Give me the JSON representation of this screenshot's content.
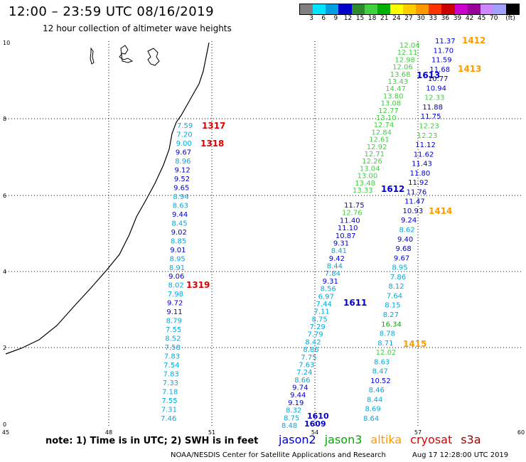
{
  "header": {
    "title": "12:00 – 23:59 UTC 08/16/2019",
    "subtitle": "12 hour collection of altimeter wave heights"
  },
  "legend": {
    "colors": [
      "#808080",
      "#00e5ff",
      "#00a0e0",
      "#0000cc",
      "#2c8a2c",
      "#40d040",
      "#00b000",
      "#ffff00",
      "#ffcc00",
      "#ff9900",
      "#ff3300",
      "#cc0000",
      "#cc00cc",
      "#990099",
      "#cc88ff",
      "#a0a0ff",
      "#000000"
    ],
    "labels": [
      "3",
      "6",
      "9",
      "12",
      "15",
      "18",
      "21",
      "24",
      "27",
      "30",
      "33",
      "36",
      "39",
      "42",
      "45",
      "70",
      "(ft)"
    ]
  },
  "axes": {
    "x_ticks": [
      "45",
      "48",
      "51",
      "54",
      "57",
      "60"
    ],
    "y_ticks": [
      "0",
      "2",
      "4",
      "6",
      "8",
      "10"
    ]
  },
  "colors": {
    "cyan": "#00aadd",
    "blue": "#0000cc",
    "green": "#44cc44",
    "darkgreen": "#00aa00",
    "orange": "#ff9900",
    "red": "#dd0000"
  },
  "tracks": [
    {
      "id": "1317",
      "label": "1317",
      "color": "red"
    },
    {
      "id": "1318",
      "label": "1318",
      "color": "red"
    },
    {
      "id": "1319",
      "label": "1319",
      "color": "red"
    },
    {
      "id": "1610",
      "label": "1610",
      "color": "blue"
    },
    {
      "id": "1609",
      "label": "1609",
      "color": "blue"
    },
    {
      "id": "1611",
      "label": "1611",
      "color": "blue"
    },
    {
      "id": "1612",
      "label": "1612",
      "color": "blue"
    },
    {
      "id": "1613",
      "label": "1613",
      "color": "blue"
    },
    {
      "id": "1412",
      "label": "1412",
      "color": "orange"
    },
    {
      "id": "1413",
      "label": "1413",
      "color": "orange"
    },
    {
      "id": "1414",
      "label": "1414",
      "color": "orange"
    },
    {
      "id": "1415",
      "label": "1415",
      "color": "orange"
    }
  ],
  "values": {
    "col1": [
      {
        "v": "7.59",
        "c": "cyan"
      },
      {
        "v": "7.20",
        "c": "cyan"
      },
      {
        "v": "9.00",
        "c": "cyan"
      },
      {
        "v": "9.67",
        "c": "blue"
      },
      {
        "v": "8.96",
        "c": "cyan"
      },
      {
        "v": "9.12",
        "c": "blue"
      },
      {
        "v": "9.52",
        "c": "blue"
      },
      {
        "v": "9.65",
        "c": "blue"
      },
      {
        "v": "8.94",
        "c": "cyan"
      },
      {
        "v": "8.63",
        "c": "cyan"
      },
      {
        "v": "9.44",
        "c": "blue"
      },
      {
        "v": "8.45",
        "c": "cyan"
      },
      {
        "v": "9.02",
        "c": "blue"
      },
      {
        "v": "8.85",
        "c": "cyan"
      },
      {
        "v": "9.01",
        "c": "blue"
      },
      {
        "v": "8.95",
        "c": "cyan"
      },
      {
        "v": "8.91",
        "c": "cyan"
      },
      {
        "v": "9.06",
        "c": "blue"
      },
      {
        "v": "8.02",
        "c": "cyan"
      },
      {
        "v": "7.98",
        "c": "cyan"
      },
      {
        "v": "9.72",
        "c": "blue"
      },
      {
        "v": "9.11",
        "c": "blue"
      },
      {
        "v": "8.79",
        "c": "cyan"
      },
      {
        "v": "7.55",
        "c": "cyan"
      },
      {
        "v": "8.52",
        "c": "cyan"
      },
      {
        "v": "7.58",
        "c": "cyan"
      },
      {
        "v": "7.83",
        "c": "cyan"
      },
      {
        "v": "7.54",
        "c": "cyan"
      },
      {
        "v": "7.83",
        "c": "cyan"
      },
      {
        "v": "7.33",
        "c": "cyan"
      },
      {
        "v": "7.18",
        "c": "cyan"
      },
      {
        "v": "7.55",
        "c": "cyan"
      },
      {
        "v": "7.31",
        "c": "cyan"
      },
      {
        "v": "7.46",
        "c": "cyan"
      }
    ],
    "col2": [
      {
        "v": "11.75",
        "c": "blue"
      },
      {
        "v": "12.76",
        "c": "green"
      },
      {
        "v": "11.40",
        "c": "blue"
      },
      {
        "v": "11.10",
        "c": "blue"
      },
      {
        "v": "10.87",
        "c": "blue"
      },
      {
        "v": "9.31",
        "c": "blue"
      },
      {
        "v": "8.41",
        "c": "cyan"
      },
      {
        "v": "9.42",
        "c": "blue"
      },
      {
        "v": "8.44",
        "c": "cyan"
      },
      {
        "v": "7.84",
        "c": "cyan"
      },
      {
        "v": "9.31",
        "c": "blue"
      },
      {
        "v": "8.56",
        "c": "cyan"
      },
      {
        "v": "6.97",
        "c": "cyan"
      },
      {
        "v": "7.44",
        "c": "cyan"
      },
      {
        "v": "7.11",
        "c": "cyan"
      },
      {
        "v": "8.75",
        "c": "cyan"
      },
      {
        "v": "7.29",
        "c": "cyan"
      },
      {
        "v": "7.79",
        "c": "cyan"
      },
      {
        "v": "8.42",
        "c": "cyan"
      },
      {
        "v": "8.86",
        "c": "cyan"
      },
      {
        "v": "7.75",
        "c": "cyan"
      },
      {
        "v": "7.63",
        "c": "cyan"
      },
      {
        "v": "7.24",
        "c": "cyan"
      },
      {
        "v": "8.66",
        "c": "cyan"
      },
      {
        "v": "9.74",
        "c": "blue"
      },
      {
        "v": "9.44",
        "c": "blue"
      },
      {
        "v": "9.19",
        "c": "blue"
      },
      {
        "v": "8.32",
        "c": "cyan"
      },
      {
        "v": "8.75",
        "c": "cyan"
      },
      {
        "v": "8.48",
        "c": "cyan"
      }
    ],
    "col3": [
      {
        "v": "12.04",
        "c": "green"
      },
      {
        "v": "12.11",
        "c": "green"
      },
      {
        "v": "12.98",
        "c": "green"
      },
      {
        "v": "12.06",
        "c": "green"
      },
      {
        "v": "13.68",
        "c": "green"
      },
      {
        "v": "13.43",
        "c": "green"
      },
      {
        "v": "14.47",
        "c": "green"
      },
      {
        "v": "13.80",
        "c": "green"
      },
      {
        "v": "13.08",
        "c": "green"
      },
      {
        "v": "12.77",
        "c": "green"
      },
      {
        "v": "13.10",
        "c": "green"
      },
      {
        "v": "12.74",
        "c": "green"
      },
      {
        "v": "12.84",
        "c": "green"
      },
      {
        "v": "12.61",
        "c": "green"
      },
      {
        "v": "12.92",
        "c": "green"
      },
      {
        "v": "12.71",
        "c": "green"
      },
      {
        "v": "12.26",
        "c": "green"
      },
      {
        "v": "13.04",
        "c": "green"
      },
      {
        "v": "13.00",
        "c": "green"
      },
      {
        "v": "13.48",
        "c": "green"
      },
      {
        "v": "13.33",
        "c": "green"
      }
    ],
    "col4": [
      {
        "v": "11.37",
        "c": "blue"
      },
      {
        "v": "11.70",
        "c": "blue"
      },
      {
        "v": "11.59",
        "c": "blue"
      },
      {
        "v": "11.68",
        "c": "blue"
      },
      {
        "v": "10.77",
        "c": "blue"
      },
      {
        "v": "10.94",
        "c": "blue"
      },
      {
        "v": "12.33",
        "c": "green"
      },
      {
        "v": "11.88",
        "c": "blue"
      },
      {
        "v": "11.75",
        "c": "blue"
      },
      {
        "v": "12.23",
        "c": "green"
      },
      {
        "v": "12.23",
        "c": "green"
      },
      {
        "v": "11.12",
        "c": "blue"
      },
      {
        "v": "11.62",
        "c": "blue"
      },
      {
        "v": "11.43",
        "c": "blue"
      },
      {
        "v": "11.80",
        "c": "blue"
      },
      {
        "v": "11.92",
        "c": "blue"
      },
      {
        "v": "11.76",
        "c": "blue"
      },
      {
        "v": "11.47",
        "c": "blue"
      },
      {
        "v": "10.93",
        "c": "blue"
      },
      {
        "v": "9.24",
        "c": "blue"
      },
      {
        "v": "8.62",
        "c": "cyan"
      },
      {
        "v": "9.40",
        "c": "blue"
      },
      {
        "v": "9.68",
        "c": "blue"
      },
      {
        "v": "9.67",
        "c": "blue"
      },
      {
        "v": "8.95",
        "c": "cyan"
      },
      {
        "v": "7.86",
        "c": "cyan"
      },
      {
        "v": "8.12",
        "c": "cyan"
      },
      {
        "v": "7.64",
        "c": "cyan"
      },
      {
        "v": "8.15",
        "c": "cyan"
      },
      {
        "v": "8.27",
        "c": "cyan"
      },
      {
        "v": "16.34",
        "c": "darkgreen"
      },
      {
        "v": "8.78",
        "c": "cyan"
      },
      {
        "v": "8.71",
        "c": "cyan"
      },
      {
        "v": "12.02",
        "c": "green"
      },
      {
        "v": "8.63",
        "c": "cyan"
      },
      {
        "v": "8.47",
        "c": "cyan"
      },
      {
        "v": "10.52",
        "c": "blue"
      },
      {
        "v": "8.46",
        "c": "cyan"
      },
      {
        "v": "8.44",
        "c": "cyan"
      },
      {
        "v": "8.69",
        "c": "cyan"
      },
      {
        "v": "8.64",
        "c": "cyan"
      }
    ]
  },
  "note": "note: 1) Time is in UTC; 2) SWH is in feet",
  "satellites": [
    {
      "name": "jason2",
      "color": "#0000cc"
    },
    {
      "name": "jason3",
      "color": "#00aa00"
    },
    {
      "name": "altika",
      "color": "#ff9900"
    },
    {
      "name": "cryosat",
      "color": "#dd0000"
    },
    {
      "name": "s3a",
      "color": "#990000"
    }
  ],
  "footer": {
    "left": "NOAA/NESDIS Center for Satellite Applications and Research",
    "right": "Aug 17 12:28:00 UTC 2019"
  }
}
